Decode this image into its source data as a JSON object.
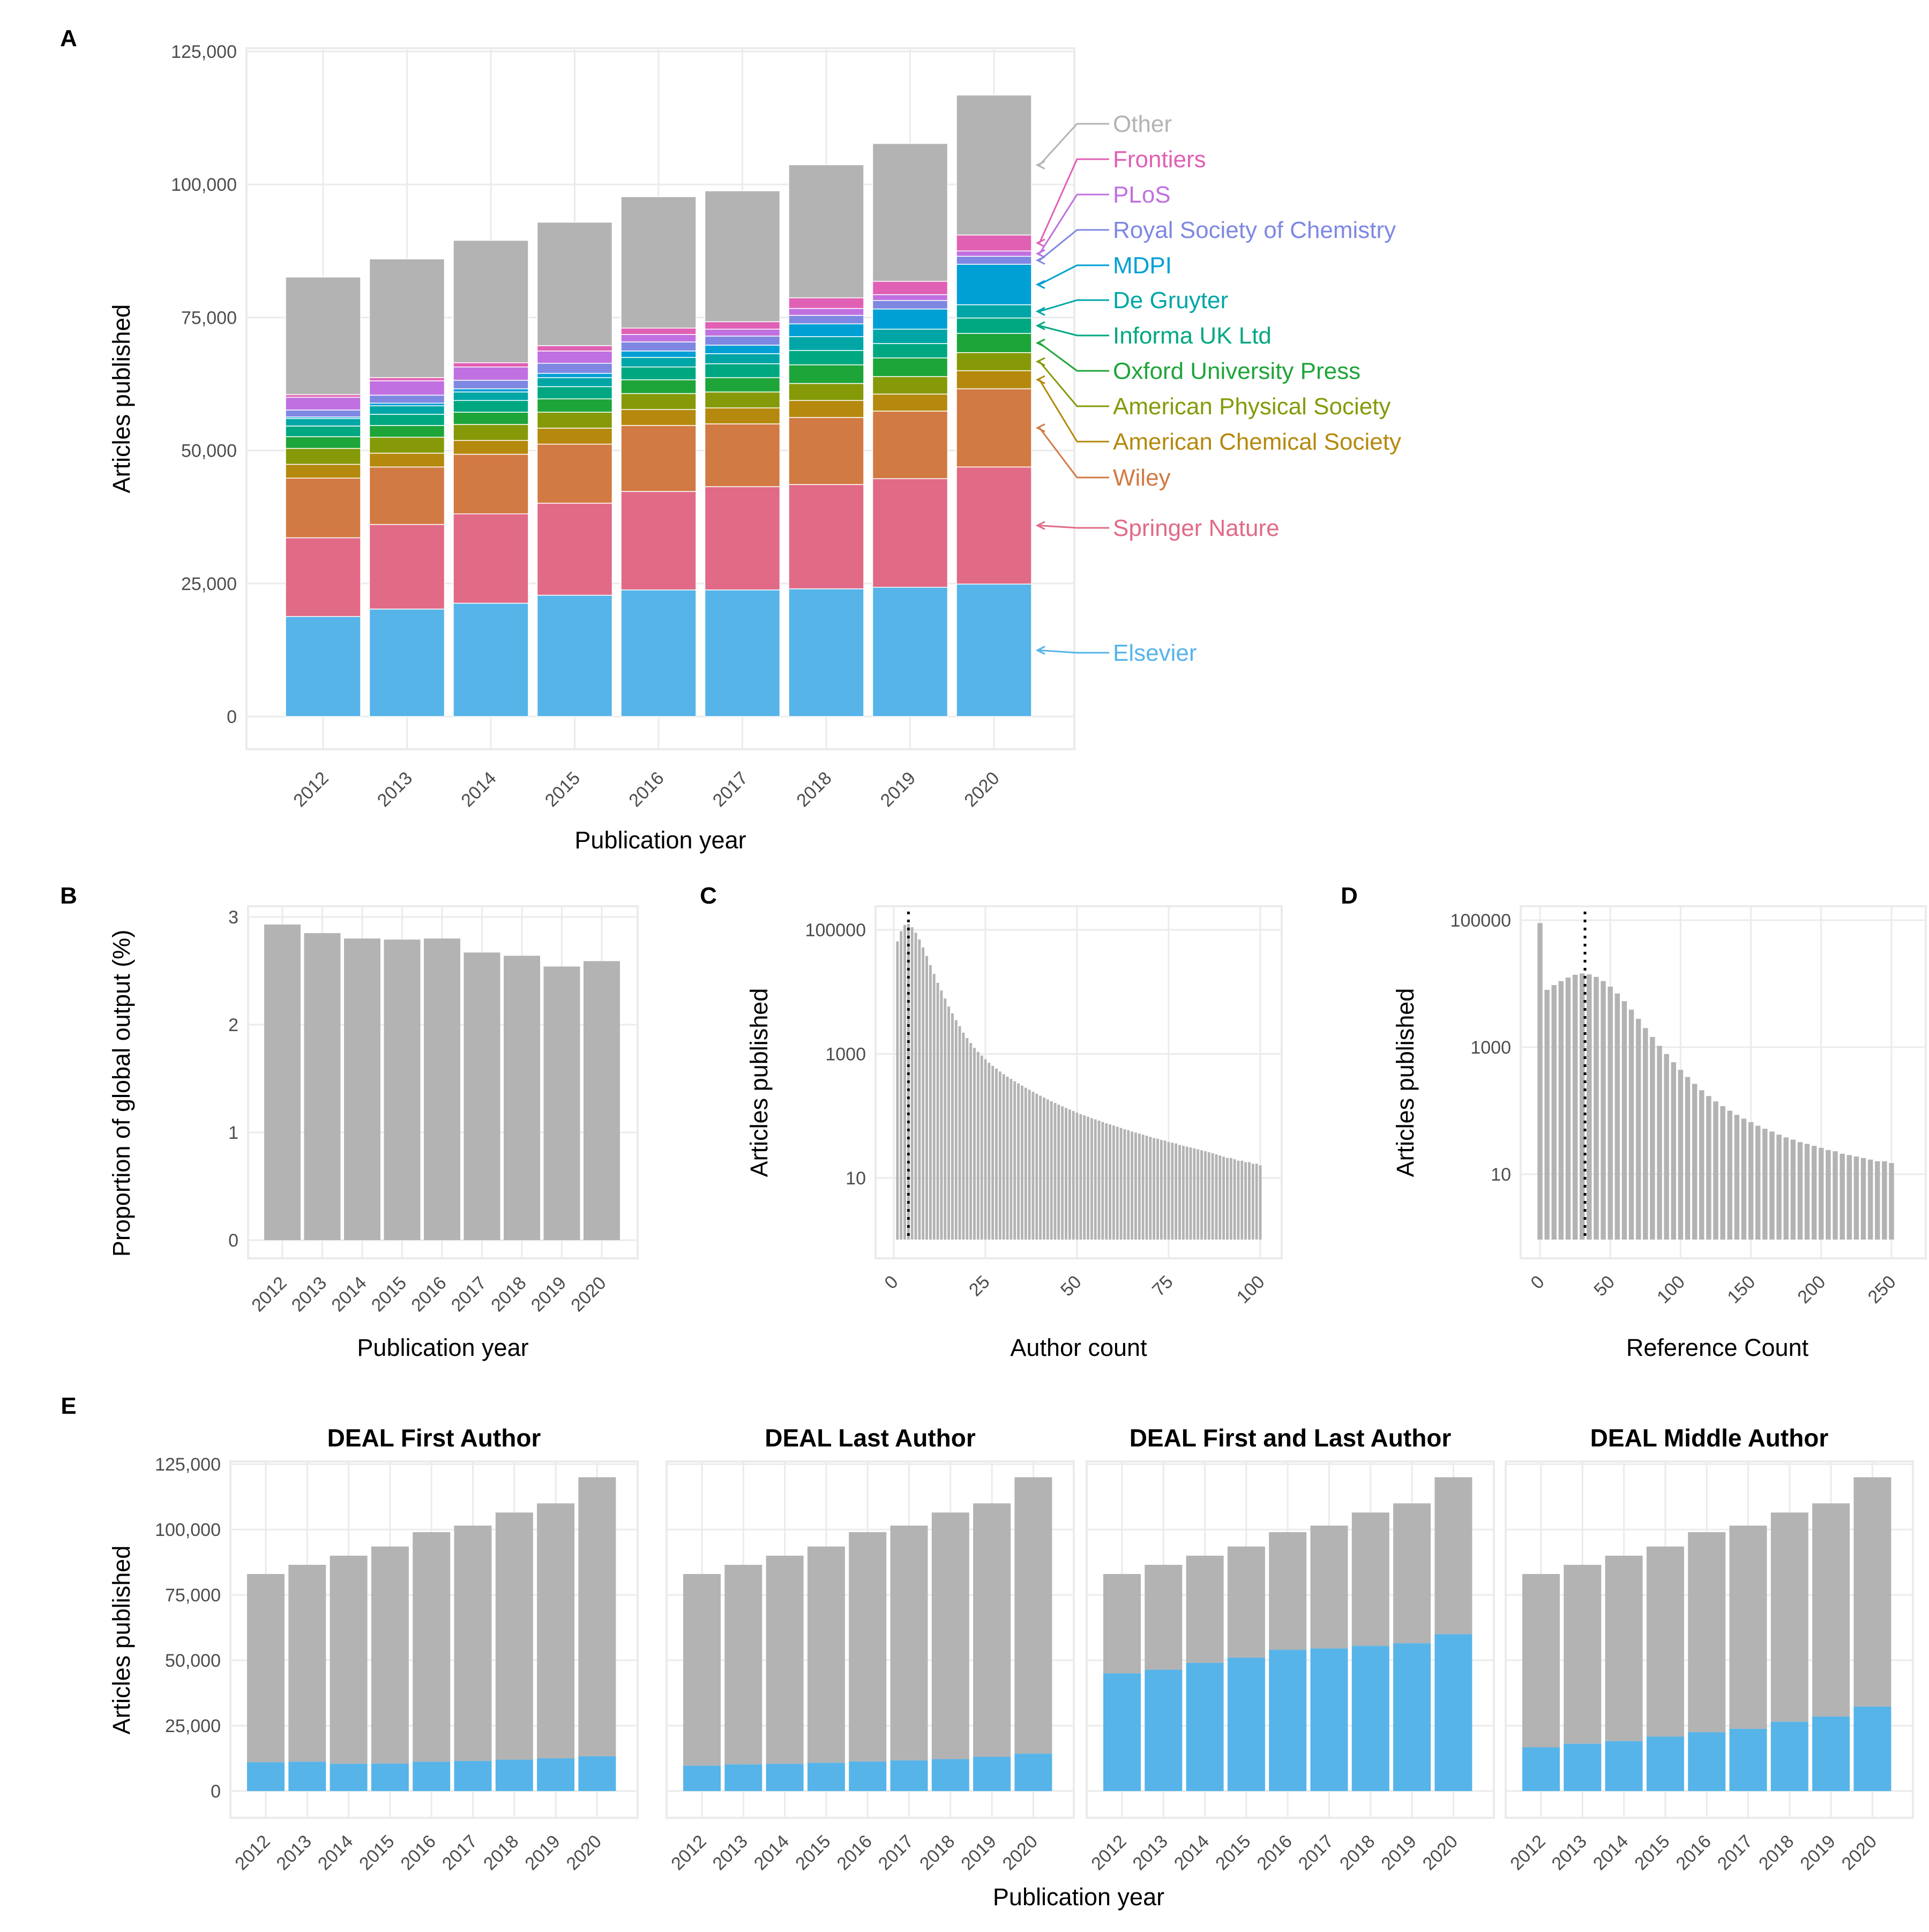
{
  "panel_labels": [
    "A",
    "B",
    "C",
    "D",
    "E"
  ],
  "colors": {
    "Elsevier": "#56b4e9",
    "Springer Nature": "#e16a86",
    "Wiley": "#d27a43",
    "American Chemical Society": "#b5890d",
    "American Physical Society": "#869a09",
    "Oxford University Press": "#1ea53a",
    "Informa UK Ltd": "#00a882",
    "De Gruyter": "#00a6a6",
    "MDPI": "#009fd4",
    "Royal Society of Chemistry": "#7e88e2",
    "PLoS": "#c070e0",
    "Frontiers": "#e060b4",
    "Other": "#b3b3b3",
    "grey_bar": "#b3b3b3",
    "deal_blue": "#56b4e9",
    "grid": "#ebebeb"
  },
  "chart_data": [
    {
      "panel": "A",
      "type": "bar",
      "stacked": true,
      "xlabel": "Publication year",
      "ylabel": "Articles published",
      "ylim": [
        0,
        125000
      ],
      "yticks": [
        0,
        25000,
        50000,
        75000,
        100000,
        125000
      ],
      "ytick_labels": [
        "0",
        "25,000",
        "50,000",
        "75,000",
        "100,000",
        "125,000"
      ],
      "categories": [
        "2012",
        "2013",
        "2014",
        "2015",
        "2016",
        "2017",
        "2018",
        "2019",
        "2020"
      ],
      "legend_placement": "right, direct labels",
      "series": [
        {
          "name": "Elsevier",
          "values": [
            18800,
            20200,
            21300,
            22800,
            23800,
            23800,
            24000,
            24300,
            24900
          ]
        },
        {
          "name": "Springer Nature",
          "values": [
            14800,
            15900,
            16800,
            17300,
            18500,
            19400,
            19600,
            20400,
            22000
          ]
        },
        {
          "name": "Wiley",
          "values": [
            11200,
            10800,
            11200,
            11100,
            12400,
            11800,
            12600,
            12700,
            14700
          ]
        },
        {
          "name": "American Chemical Society",
          "values": [
            2600,
            2600,
            2600,
            3000,
            3000,
            3000,
            3200,
            3200,
            3400
          ]
        },
        {
          "name": "American Physical Society",
          "values": [
            3000,
            3000,
            3000,
            3000,
            3000,
            3000,
            3200,
            3300,
            3400
          ]
        },
        {
          "name": "Oxford University Press",
          "values": [
            2200,
            2200,
            2300,
            2500,
            2600,
            2700,
            3500,
            3500,
            3600
          ]
        },
        {
          "name": "Informa UK Ltd",
          "values": [
            2000,
            2100,
            2200,
            2300,
            2400,
            2600,
            2700,
            2700,
            2900
          ]
        },
        {
          "name": "De Gruyter",
          "values": [
            1400,
            1600,
            1600,
            1700,
            1800,
            1900,
            2600,
            2700,
            2500
          ]
        },
        {
          "name": "MDPI",
          "values": [
            300,
            500,
            600,
            800,
            1200,
            1600,
            2400,
            3800,
            7600
          ]
        },
        {
          "name": "Royal Society of Chemistry",
          "values": [
            1300,
            1500,
            1600,
            1900,
            1700,
            1700,
            1600,
            1600,
            1500
          ]
        },
        {
          "name": "PLoS",
          "values": [
            2400,
            2700,
            2500,
            2300,
            1400,
            1300,
            1300,
            1100,
            1000
          ]
        },
        {
          "name": "Frontiers",
          "values": [
            500,
            600,
            800,
            1000,
            1200,
            1400,
            2000,
            2500,
            3000
          ]
        },
        {
          "name": "Other",
          "values": [
            22100,
            22300,
            23000,
            23200,
            24700,
            24600,
            25000,
            25900,
            26300
          ]
        }
      ],
      "legend_order": [
        "Other",
        "Frontiers",
        "PLoS",
        "Royal Society of Chemistry",
        "MDPI",
        "De Gruyter",
        "Informa UK Ltd",
        "Oxford University Press",
        "American Physical Society",
        "American Chemical Society",
        "Wiley",
        "Springer Nature",
        "Elsevier"
      ]
    },
    {
      "panel": "B",
      "type": "bar",
      "xlabel": "Publication year",
      "ylabel": "Proportion of global output (%)",
      "ylim": [
        0,
        3
      ],
      "yticks": [
        0,
        1,
        2,
        3
      ],
      "ytick_labels": [
        "0",
        "1",
        "2",
        "3"
      ],
      "categories": [
        "2012",
        "2013",
        "2014",
        "2015",
        "2016",
        "2017",
        "2018",
        "2019",
        "2020"
      ],
      "values": [
        2.93,
        2.85,
        2.8,
        2.79,
        2.8,
        2.67,
        2.64,
        2.54,
        2.59
      ]
    },
    {
      "panel": "C",
      "type": "bar",
      "scale_y": "log10",
      "xlabel": "Author count",
      "ylabel": "Articles published",
      "xlim": [
        0,
        100
      ],
      "xticks": [
        0,
        25,
        50,
        75,
        100
      ],
      "ylim": [
        1,
        150000
      ],
      "yticks": [
        10,
        1000,
        100000
      ],
      "ytick_labels": [
        "10",
        "1000",
        "100000"
      ],
      "vline_x": 4,
      "x": [
        1,
        2,
        3,
        4,
        5,
        6,
        7,
        8,
        9,
        10,
        11,
        12,
        13,
        14,
        15,
        16,
        17,
        18,
        19,
        20,
        21,
        22,
        23,
        24,
        25,
        26,
        27,
        28,
        29,
        30,
        31,
        32,
        33,
        34,
        35,
        36,
        37,
        38,
        39,
        40,
        41,
        42,
        43,
        44,
        45,
        46,
        47,
        48,
        49,
        50,
        51,
        52,
        53,
        54,
        55,
        56,
        57,
        58,
        59,
        60,
        61,
        62,
        63,
        64,
        65,
        66,
        67,
        68,
        69,
        70,
        71,
        72,
        73,
        74,
        75,
        76,
        77,
        78,
        79,
        80,
        81,
        82,
        83,
        84,
        85,
        86,
        87,
        88,
        89,
        90,
        91,
        92,
        93,
        94,
        95,
        96,
        97,
        98,
        99,
        100
      ],
      "values": [
        65000,
        95000,
        120000,
        125000,
        110000,
        90000,
        70000,
        52000,
        38000,
        27000,
        19500,
        14000,
        10500,
        7800,
        5800,
        4500,
        3500,
        2800,
        2200,
        1800,
        1500,
        1250,
        1080,
        940,
        820,
        720,
        640,
        580,
        520,
        470,
        430,
        395,
        362,
        334,
        308,
        285,
        264,
        245,
        228,
        212,
        198,
        185,
        173,
        162,
        152,
        143,
        135,
        127,
        120,
        113,
        107,
        102,
        97,
        92,
        88,
        84,
        80,
        76,
        73,
        70,
        67,
        64,
        61,
        59,
        56,
        54,
        52,
        50,
        48,
        46,
        44,
        43,
        41,
        40,
        38,
        37,
        36,
        34,
        33,
        32,
        31,
        30,
        29,
        28,
        27,
        26,
        25,
        24,
        23,
        22,
        21,
        21,
        20,
        19,
        19,
        18,
        18,
        17,
        17,
        16
      ]
    },
    {
      "panel": "D",
      "type": "bar",
      "scale_y": "log10",
      "xlabel": "Reference Count",
      "ylabel": "Articles published",
      "xlim": [
        0,
        250
      ],
      "xticks": [
        0,
        50,
        100,
        150,
        200,
        250
      ],
      "ylim": [
        1,
        150000
      ],
      "yticks": [
        10,
        1000,
        100000
      ],
      "ytick_labels": [
        "10",
        "1000",
        "100000"
      ],
      "vline_x": 32,
      "x": [
        0,
        5,
        10,
        15,
        20,
        25,
        30,
        35,
        40,
        45,
        50,
        55,
        60,
        65,
        70,
        75,
        80,
        85,
        90,
        95,
        100,
        105,
        110,
        115,
        120,
        125,
        130,
        135,
        140,
        145,
        150,
        155,
        160,
        165,
        170,
        175,
        180,
        185,
        190,
        195,
        200,
        205,
        210,
        215,
        220,
        225,
        230,
        235,
        240,
        245,
        250
      ],
      "values": [
        90000,
        8000,
        9500,
        11000,
        12500,
        13800,
        14500,
        14000,
        12800,
        11000,
        9000,
        7000,
        5300,
        3900,
        2800,
        2000,
        1450,
        1050,
        780,
        580,
        440,
        340,
        265,
        210,
        170,
        140,
        118,
        100,
        86,
        75,
        66,
        58,
        52,
        47,
        42,
        38,
        35,
        32,
        30,
        28,
        26,
        24,
        23,
        21,
        20,
        19,
        18,
        17,
        16,
        16,
        15
      ]
    },
    {
      "panel": "E",
      "type": "bar",
      "stacked": true,
      "xlabel": "Publication year",
      "ylabel": "Articles published",
      "ylim": [
        0,
        125000
      ],
      "yticks": [
        0,
        25000,
        50000,
        75000,
        100000,
        125000
      ],
      "ytick_labels": [
        "0",
        "25,000",
        "50,000",
        "75,000",
        "100,000",
        "125,000"
      ],
      "categories": [
        "2012",
        "2013",
        "2014",
        "2015",
        "2016",
        "2017",
        "2018",
        "2019",
        "2020"
      ],
      "totals": [
        83000,
        86500,
        90000,
        93500,
        99000,
        101500,
        106500,
        110000,
        120000
      ],
      "facets": [
        {
          "title": "DEAL First Author",
          "deal": [
            11000,
            11200,
            10400,
            10500,
            11200,
            11500,
            12000,
            12500,
            13300
          ]
        },
        {
          "title": "DEAL Last Author",
          "deal": [
            9700,
            10200,
            10400,
            10800,
            11300,
            11700,
            12200,
            13100,
            14300
          ]
        },
        {
          "title": "DEAL First and Last Author",
          "deal": [
            45000,
            46400,
            49000,
            51000,
            54000,
            54500,
            55500,
            56500,
            60000
          ]
        },
        {
          "title": "DEAL Middle Author",
          "deal": [
            16700,
            18100,
            19100,
            20800,
            22500,
            23800,
            26500,
            28500,
            32300
          ]
        }
      ]
    }
  ]
}
